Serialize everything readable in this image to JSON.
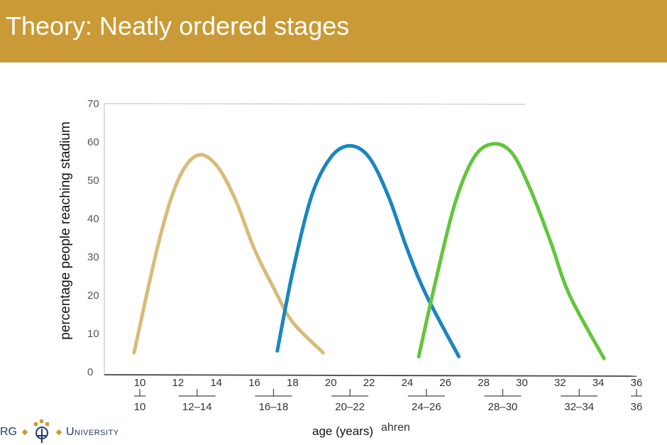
{
  "title": "Theory: Neatly ordered stages",
  "logo": {
    "prefix": "RG",
    "name": "University"
  },
  "colors": {
    "title_bar": "#c99a35",
    "stage1": "#d7bc7a",
    "stage2": "#1a86bf",
    "stage3": "#63c53c",
    "logo": "#1f3a68",
    "logo_accent": "#c99a35"
  },
  "chart_data": {
    "type": "line",
    "ylabel": "percentage people reaching stadium",
    "xlabel": "age (years)",
    "xlabel_scan_fragment": "ahren",
    "ylim": [
      0,
      70
    ],
    "yticks": [
      "0",
      "10",
      "20",
      "30",
      "40",
      "50",
      "60",
      "70"
    ],
    "xlim": [
      10,
      36
    ],
    "xticks": [
      "10",
      "12",
      "14",
      "16",
      "18",
      "20",
      "22",
      "24",
      "26",
      "28",
      "30",
      "32",
      "34",
      "36"
    ],
    "range_labels": [
      {
        "at": 10,
        "label": "10"
      },
      {
        "at": 13,
        "label": "12–14"
      },
      {
        "at": 17,
        "label": "16–18"
      },
      {
        "at": 21,
        "label": "20–22"
      },
      {
        "at": 25,
        "label": "24–26"
      },
      {
        "at": 29,
        "label": "28–30"
      },
      {
        "at": 33,
        "label": "32–34"
      },
      {
        "at": 36,
        "label": "36"
      }
    ],
    "grid": false,
    "series": [
      {
        "color": "#d7bc7a",
        "x": [
          9.7,
          11,
          12,
          13,
          14,
          15,
          16,
          17,
          18,
          19.6
        ],
        "y": [
          5,
          34,
          50,
          56.5,
          54,
          45,
          32,
          22,
          13,
          5
        ]
      },
      {
        "color": "#1a86bf",
        "x": [
          17.2,
          18,
          19,
          20,
          21,
          22,
          23,
          24,
          25,
          26.7
        ],
        "y": [
          5.5,
          26,
          46,
          56,
          59,
          56,
          46,
          32,
          20,
          4
        ]
      },
      {
        "color": "#63c53c",
        "x": [
          24.6,
          25.5,
          26.5,
          27.5,
          28.5,
          29.5,
          30.5,
          31.5,
          32.5,
          34.3
        ],
        "y": [
          4,
          24,
          44,
          56,
          59.5,
          57,
          47,
          34,
          20,
          3.5
        ]
      }
    ]
  }
}
